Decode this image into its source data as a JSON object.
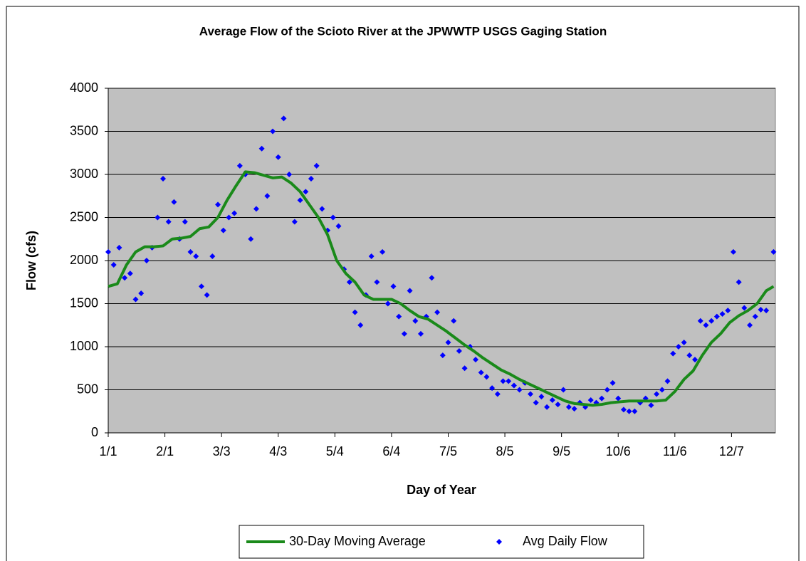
{
  "chart_data": {
    "type": "scatter",
    "title": "Average Flow of the Scioto River at the JPWWTP USGS Gaging Station",
    "xlabel": "Day of Year",
    "ylabel": "Flow (cfs)",
    "xlim": [
      0,
      365
    ],
    "ylim": [
      0,
      4000
    ],
    "xticks": [
      {
        "value": 0,
        "label": "1/1"
      },
      {
        "value": 31,
        "label": "2/1"
      },
      {
        "value": 62,
        "label": "3/3"
      },
      {
        "value": 93,
        "label": "4/3"
      },
      {
        "value": 124,
        "label": "5/4"
      },
      {
        "value": 155,
        "label": "6/4"
      },
      {
        "value": 186,
        "label": "7/5"
      },
      {
        "value": 217,
        "label": "8/5"
      },
      {
        "value": 248,
        "label": "9/5"
      },
      {
        "value": 279,
        "label": "10/6"
      },
      {
        "value": 310,
        "label": "11/6"
      },
      {
        "value": 341,
        "label": "12/7"
      }
    ],
    "yticks": [
      0,
      500,
      1000,
      1500,
      2000,
      2500,
      3000,
      3500,
      4000
    ],
    "grid": true,
    "legend": "bottom",
    "background": "#c0c0c0",
    "series": [
      {
        "name": "30-Day Moving Average",
        "type": "line",
        "color": "#1a8a1a",
        "x": [
          0,
          5,
          10,
          15,
          20,
          25,
          30,
          35,
          40,
          45,
          50,
          55,
          60,
          65,
          70,
          75,
          80,
          85,
          90,
          95,
          100,
          105,
          110,
          115,
          120,
          125,
          130,
          135,
          140,
          145,
          150,
          155,
          160,
          165,
          170,
          175,
          180,
          185,
          190,
          195,
          200,
          205,
          210,
          215,
          220,
          225,
          230,
          235,
          240,
          245,
          250,
          255,
          260,
          265,
          270,
          275,
          280,
          285,
          290,
          295,
          300,
          305,
          310,
          315,
          320,
          325,
          330,
          335,
          340,
          345,
          350,
          355,
          360,
          364
        ],
        "values": [
          1700,
          1730,
          1950,
          2100,
          2160,
          2160,
          2170,
          2250,
          2260,
          2280,
          2370,
          2390,
          2500,
          2700,
          2870,
          3030,
          3020,
          2990,
          2960,
          2970,
          2900,
          2800,
          2650,
          2500,
          2300,
          2000,
          1850,
          1750,
          1600,
          1550,
          1550,
          1550,
          1500,
          1420,
          1350,
          1320,
          1250,
          1180,
          1100,
          1020,
          950,
          870,
          800,
          730,
          680,
          620,
          570,
          520,
          470,
          420,
          370,
          340,
          330,
          320,
          330,
          350,
          360,
          370,
          370,
          370,
          370,
          380,
          480,
          620,
          720,
          900,
          1050,
          1150,
          1280,
          1360,
          1420,
          1500,
          1650,
          1700
        ]
      },
      {
        "name": "Avg Daily Flow",
        "type": "scatter",
        "color": "#0000ff",
        "x": [
          0,
          3,
          6,
          9,
          12,
          15,
          18,
          21,
          24,
          27,
          30,
          33,
          36,
          39,
          42,
          45,
          48,
          51,
          54,
          57,
          60,
          63,
          66,
          69,
          72,
          75,
          78,
          81,
          84,
          87,
          90,
          93,
          96,
          99,
          102,
          105,
          108,
          111,
          114,
          117,
          120,
          123,
          126,
          129,
          132,
          135,
          138,
          141,
          144,
          147,
          150,
          153,
          156,
          159,
          162,
          165,
          168,
          171,
          174,
          177,
          180,
          183,
          186,
          189,
          192,
          195,
          198,
          201,
          204,
          207,
          210,
          213,
          216,
          219,
          222,
          225,
          228,
          231,
          234,
          237,
          240,
          243,
          246,
          249,
          252,
          255,
          258,
          261,
          264,
          267,
          270,
          273,
          276,
          279,
          282,
          285,
          288,
          291,
          294,
          297,
          300,
          303,
          306,
          309,
          312,
          315,
          318,
          321,
          324,
          327,
          330,
          333,
          336,
          339,
          342,
          345,
          348,
          351,
          354,
          357,
          360,
          364
        ],
        "values": [
          2100,
          1950,
          2150,
          1800,
          1850,
          1550,
          1620,
          2000,
          2150,
          2500,
          2950,
          2450,
          2680,
          2250,
          2450,
          2100,
          2050,
          1700,
          1600,
          2050,
          2650,
          2350,
          2500,
          2550,
          3100,
          3000,
          2250,
          2600,
          3300,
          2750,
          3500,
          3200,
          3650,
          3000,
          2450,
          2700,
          2800,
          2950,
          3100,
          2600,
          2350,
          2500,
          2400,
          1900,
          1750,
          1400,
          1250,
          1600,
          2050,
          1750,
          2100,
          1500,
          1700,
          1350,
          1150,
          1650,
          1300,
          1150,
          1350,
          1800,
          1400,
          900,
          1050,
          1300,
          950,
          750,
          1000,
          850,
          700,
          650,
          520,
          450,
          600,
          600,
          550,
          500,
          580,
          450,
          350,
          420,
          300,
          380,
          330,
          500,
          300,
          280,
          350,
          300,
          380,
          350,
          400,
          500,
          580,
          400,
          270,
          250,
          250,
          350,
          400,
          320,
          450,
          500,
          600,
          920,
          1000,
          1050,
          900,
          850,
          1300,
          1250,
          1300,
          1350,
          1380,
          1420,
          2100,
          1750,
          1450,
          1250,
          1350,
          1430,
          1420,
          2100
        ]
      }
    ]
  }
}
